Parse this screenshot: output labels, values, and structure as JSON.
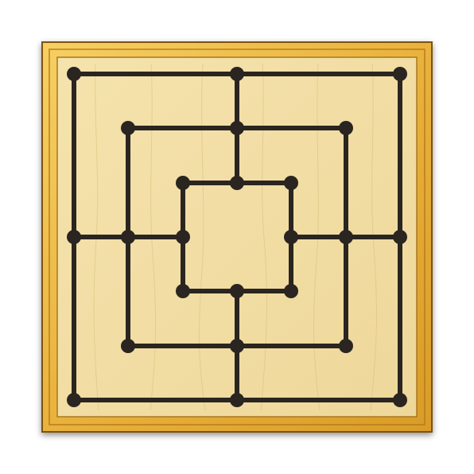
{
  "game": {
    "name": "",
    "board": {
      "rings": 3,
      "points_per_ring": 8,
      "connectors": [
        "top",
        "right",
        "bottom",
        "left"
      ]
    },
    "colors": {
      "frame_light": "#f2c34e",
      "frame_dark": "#c8891c",
      "frame_edge": "#8a5a12",
      "board_surface": "#f3e0a6",
      "board_surface_dark": "#e7cd85",
      "line": "#2a2520",
      "point": "#2a2520"
    },
    "pieces": []
  }
}
